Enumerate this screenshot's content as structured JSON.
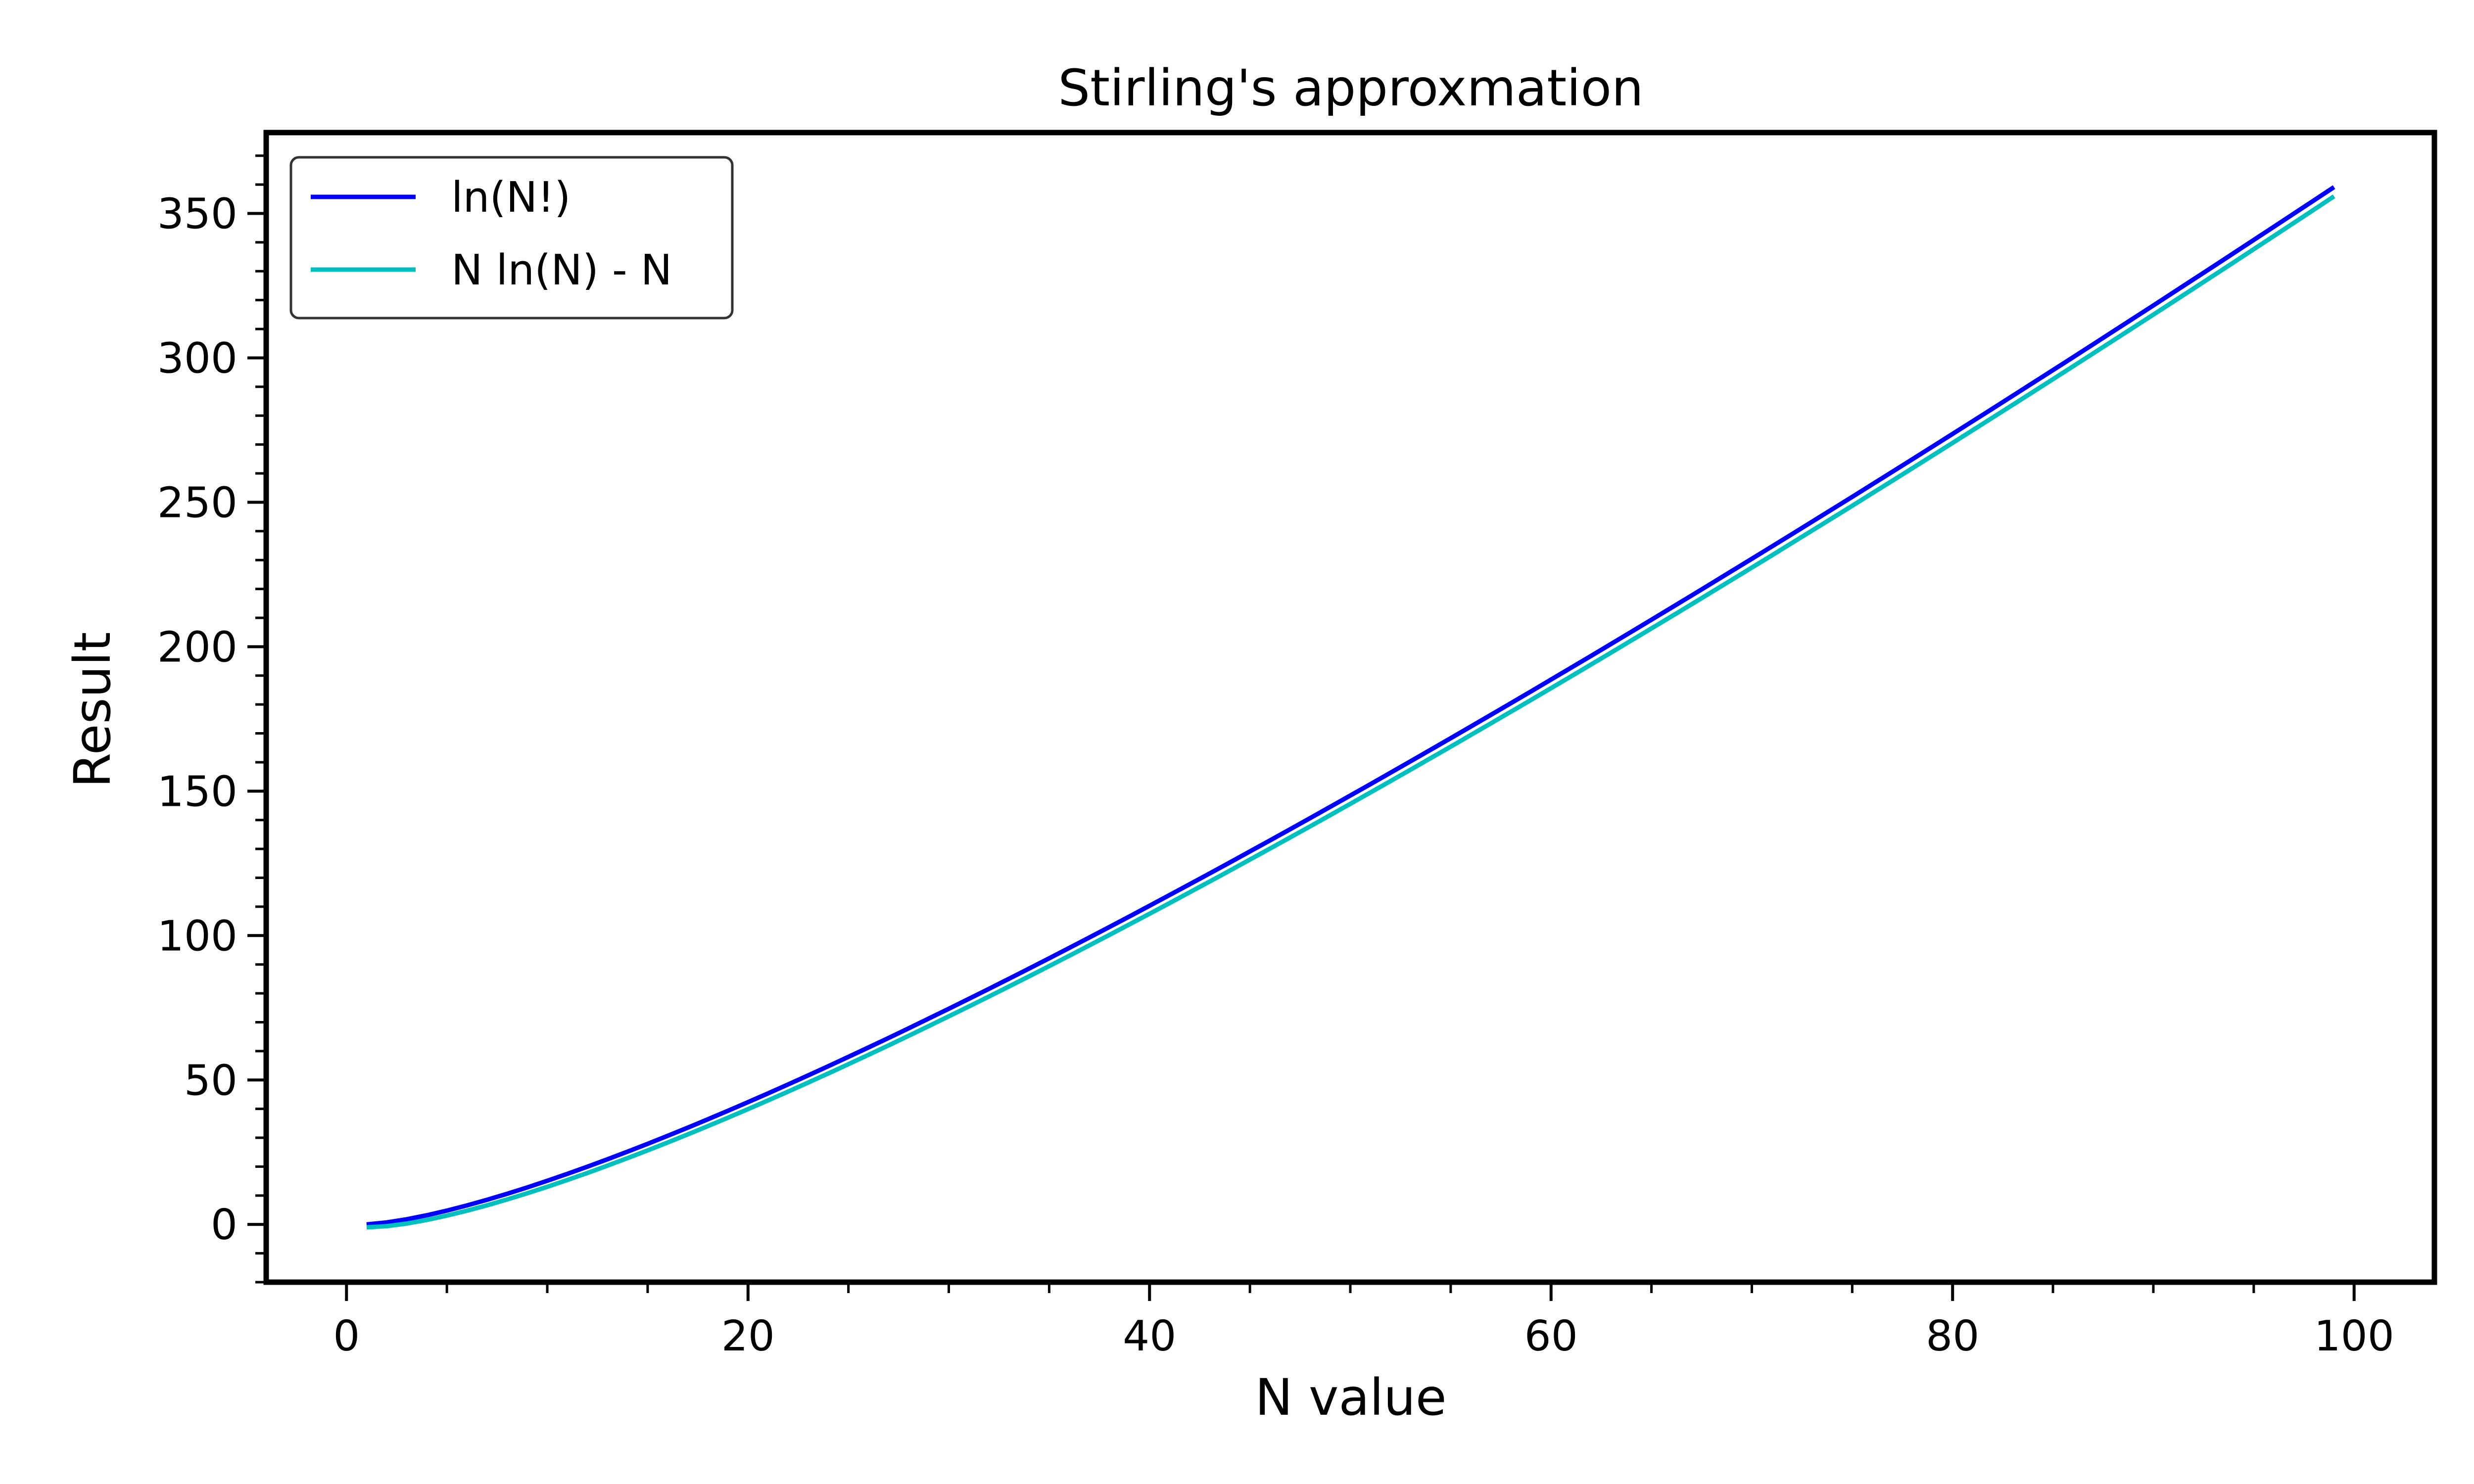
{
  "chart_data": {
    "type": "line",
    "title": "Stirling's approxmation",
    "xlabel": "N value",
    "ylabel": "Result",
    "xlim": [
      -4,
      104
    ],
    "ylim": [
      -20,
      378
    ],
    "x_ticks": [
      0,
      20,
      40,
      60,
      80,
      100
    ],
    "y_ticks": [
      0,
      50,
      100,
      150,
      200,
      250,
      300,
      350
    ],
    "x_minor_step": 5,
    "y_minor_step": 10,
    "grid": false,
    "legend_position": "top-left",
    "x_range": [
      1,
      99
    ],
    "series": [
      {
        "name": "ln(N!)",
        "color": "#0000ff",
        "x": [
          1,
          2,
          5,
          10,
          20,
          30,
          40,
          50,
          60,
          70,
          80,
          90,
          99
        ],
        "y": [
          0,
          0.69,
          4.79,
          15.1,
          42.34,
          74.66,
          110.32,
          148.48,
          188.63,
          230.44,
          273.67,
          318.15,
          359.13
        ]
      },
      {
        "name": "N ln(N) - N",
        "color": "#00bfbf",
        "x": [
          1,
          2,
          5,
          10,
          20,
          30,
          40,
          50,
          60,
          70,
          80,
          90,
          99
        ],
        "y": [
          -1,
          -0.61,
          3.05,
          13.03,
          39.91,
          72.04,
          107.55,
          145.6,
          185.66,
          227.4,
          270.56,
          314.98,
          355.93
        ]
      }
    ]
  }
}
